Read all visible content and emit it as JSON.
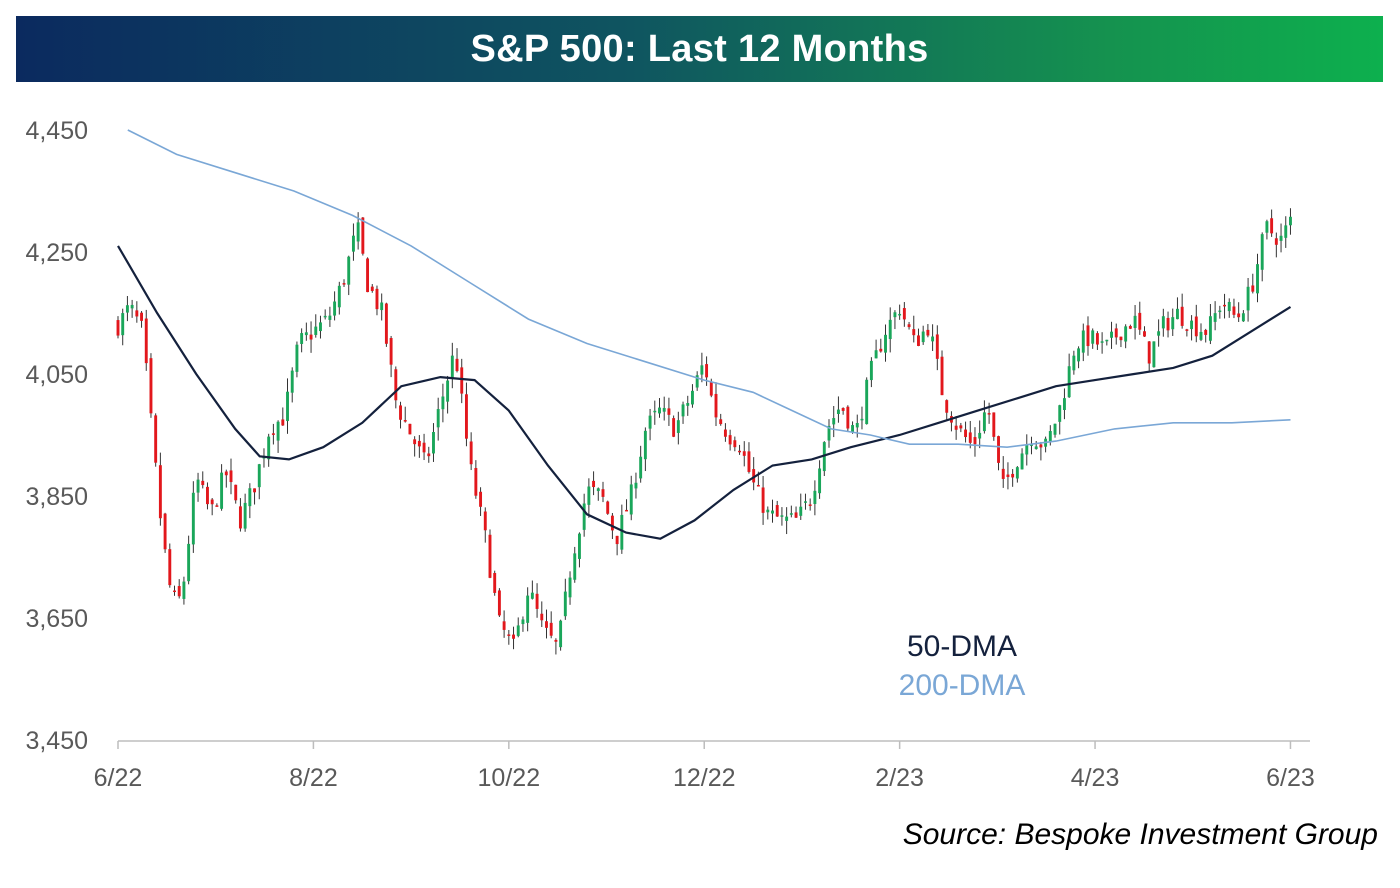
{
  "header": {
    "title": "S&P 500: Last 12 Months"
  },
  "source": "Source: Bespoke Investment Group",
  "colors": {
    "up": "#1aa65a",
    "down": "#e2171c",
    "wick": "#333333",
    "dma50": "#14213d",
    "dma200": "#7aa7d6",
    "axis": "#bdbdbd",
    "tick_text": "#595959"
  },
  "chart_data": {
    "type": "candlestick",
    "title": "S&P 500: Last 12 Months",
    "ylim": [
      3450,
      4450
    ],
    "yticks": [
      3450,
      3650,
      3850,
      4050,
      4250,
      4450
    ],
    "ytick_labels": [
      "3,450",
      "3,650",
      "3,850",
      "4,050",
      "4,250",
      "4,450"
    ],
    "x_range_months": [
      0,
      12.2
    ],
    "xticks": [
      0,
      2,
      4,
      6,
      8,
      10,
      12
    ],
    "xtick_labels": [
      "6/22",
      "8/22",
      "10/22",
      "12/22",
      "2/23",
      "4/23",
      "6/23"
    ],
    "legend": [
      {
        "key": "dma50",
        "label": "50-DMA"
      },
      {
        "key": "dma200",
        "label": "200-DMA"
      }
    ],
    "close_anchors": [
      [
        0.0,
        4130
      ],
      [
        0.12,
        4160
      ],
      [
        0.25,
        4120
      ],
      [
        0.35,
        3950
      ],
      [
        0.45,
        3790
      ],
      [
        0.55,
        3680
      ],
      [
        0.65,
        3680
      ],
      [
        0.8,
        3880
      ],
      [
        0.95,
        3820
      ],
      [
        1.1,
        3890
      ],
      [
        1.25,
        3810
      ],
      [
        1.4,
        3870
      ],
      [
        1.55,
        3960
      ],
      [
        1.7,
        3980
      ],
      [
        1.85,
        4100
      ],
      [
        2.0,
        4120
      ],
      [
        2.15,
        4140
      ],
      [
        2.3,
        4200
      ],
      [
        2.45,
        4290
      ],
      [
        2.55,
        4200
      ],
      [
        2.7,
        4150
      ],
      [
        2.85,
        4000
      ],
      [
        3.0,
        3950
      ],
      [
        3.15,
        3900
      ],
      [
        3.3,
        4000
      ],
      [
        3.45,
        4090
      ],
      [
        3.6,
        3900
      ],
      [
        3.75,
        3790
      ],
      [
        3.9,
        3640
      ],
      [
        4.05,
        3600
      ],
      [
        4.2,
        3700
      ],
      [
        4.35,
        3630
      ],
      [
        4.5,
        3600
      ],
      [
        4.65,
        3750
      ],
      [
        4.8,
        3860
      ],
      [
        4.95,
        3850
      ],
      [
        5.1,
        3780
      ],
      [
        5.25,
        3850
      ],
      [
        5.4,
        3960
      ],
      [
        5.55,
        3990
      ],
      [
        5.7,
        3960
      ],
      [
        5.85,
        4010
      ],
      [
        6.0,
        4070
      ],
      [
        6.1,
        3990
      ],
      [
        6.25,
        3950
      ],
      [
        6.35,
        3940
      ],
      [
        6.5,
        3870
      ],
      [
        6.65,
        3820
      ],
      [
        6.8,
        3810
      ],
      [
        6.95,
        3810
      ],
      [
        7.1,
        3850
      ],
      [
        7.25,
        3960
      ],
      [
        7.4,
        4000
      ],
      [
        7.55,
        3950
      ],
      [
        7.7,
        4050
      ],
      [
        7.85,
        4120
      ],
      [
        8.0,
        4160
      ],
      [
        8.15,
        4100
      ],
      [
        8.3,
        4130
      ],
      [
        8.45,
        4010
      ],
      [
        8.6,
        3960
      ],
      [
        8.75,
        3930
      ],
      [
        8.9,
        4000
      ],
      [
        9.05,
        3860
      ],
      [
        9.2,
        3910
      ],
      [
        9.35,
        3950
      ],
      [
        9.5,
        3930
      ],
      [
        9.65,
        4000
      ],
      [
        9.8,
        4100
      ],
      [
        9.95,
        4110
      ],
      [
        10.1,
        4090
      ],
      [
        10.25,
        4120
      ],
      [
        10.4,
        4140
      ],
      [
        10.55,
        4080
      ],
      [
        10.7,
        4130
      ],
      [
        10.85,
        4150
      ],
      [
        11.0,
        4130
      ],
      [
        11.15,
        4120
      ],
      [
        11.3,
        4170
      ],
      [
        11.45,
        4140
      ],
      [
        11.6,
        4190
      ],
      [
        11.75,
        4290
      ],
      [
        11.9,
        4270
      ],
      [
        12.0,
        4300
      ]
    ],
    "series": [
      {
        "name": "50-DMA",
        "key": "dma50",
        "points": [
          [
            0.0,
            4260
          ],
          [
            0.4,
            4150
          ],
          [
            0.8,
            4050
          ],
          [
            1.2,
            3960
          ],
          [
            1.45,
            3915
          ],
          [
            1.75,
            3910
          ],
          [
            2.1,
            3930
          ],
          [
            2.5,
            3970
          ],
          [
            2.9,
            4030
          ],
          [
            3.3,
            4045
          ],
          [
            3.65,
            4040
          ],
          [
            4.0,
            3990
          ],
          [
            4.4,
            3900
          ],
          [
            4.8,
            3820
          ],
          [
            5.2,
            3790
          ],
          [
            5.55,
            3780
          ],
          [
            5.9,
            3810
          ],
          [
            6.3,
            3860
          ],
          [
            6.7,
            3900
          ],
          [
            7.1,
            3910
          ],
          [
            7.5,
            3930
          ],
          [
            8.0,
            3950
          ],
          [
            8.4,
            3970
          ],
          [
            8.8,
            3990
          ],
          [
            9.2,
            4010
          ],
          [
            9.6,
            4030
          ],
          [
            10.0,
            4040
          ],
          [
            10.4,
            4050
          ],
          [
            10.8,
            4060
          ],
          [
            11.2,
            4080
          ],
          [
            11.6,
            4120
          ],
          [
            12.0,
            4160
          ]
        ]
      },
      {
        "name": "200-DMA",
        "key": "dma200",
        "points": [
          [
            0.1,
            4450
          ],
          [
            0.6,
            4410
          ],
          [
            1.2,
            4380
          ],
          [
            1.8,
            4350
          ],
          [
            2.4,
            4310
          ],
          [
            3.0,
            4260
          ],
          [
            3.6,
            4200
          ],
          [
            4.2,
            4140
          ],
          [
            4.8,
            4100
          ],
          [
            5.4,
            4070
          ],
          [
            6.0,
            4040
          ],
          [
            6.5,
            4020
          ],
          [
            6.9,
            3990
          ],
          [
            7.3,
            3960
          ],
          [
            7.7,
            3950
          ],
          [
            8.1,
            3935
          ],
          [
            8.6,
            3935
          ],
          [
            9.1,
            3930
          ],
          [
            9.6,
            3940
          ],
          [
            10.2,
            3960
          ],
          [
            10.8,
            3970
          ],
          [
            11.4,
            3970
          ],
          [
            12.0,
            3975
          ]
        ]
      }
    ]
  }
}
